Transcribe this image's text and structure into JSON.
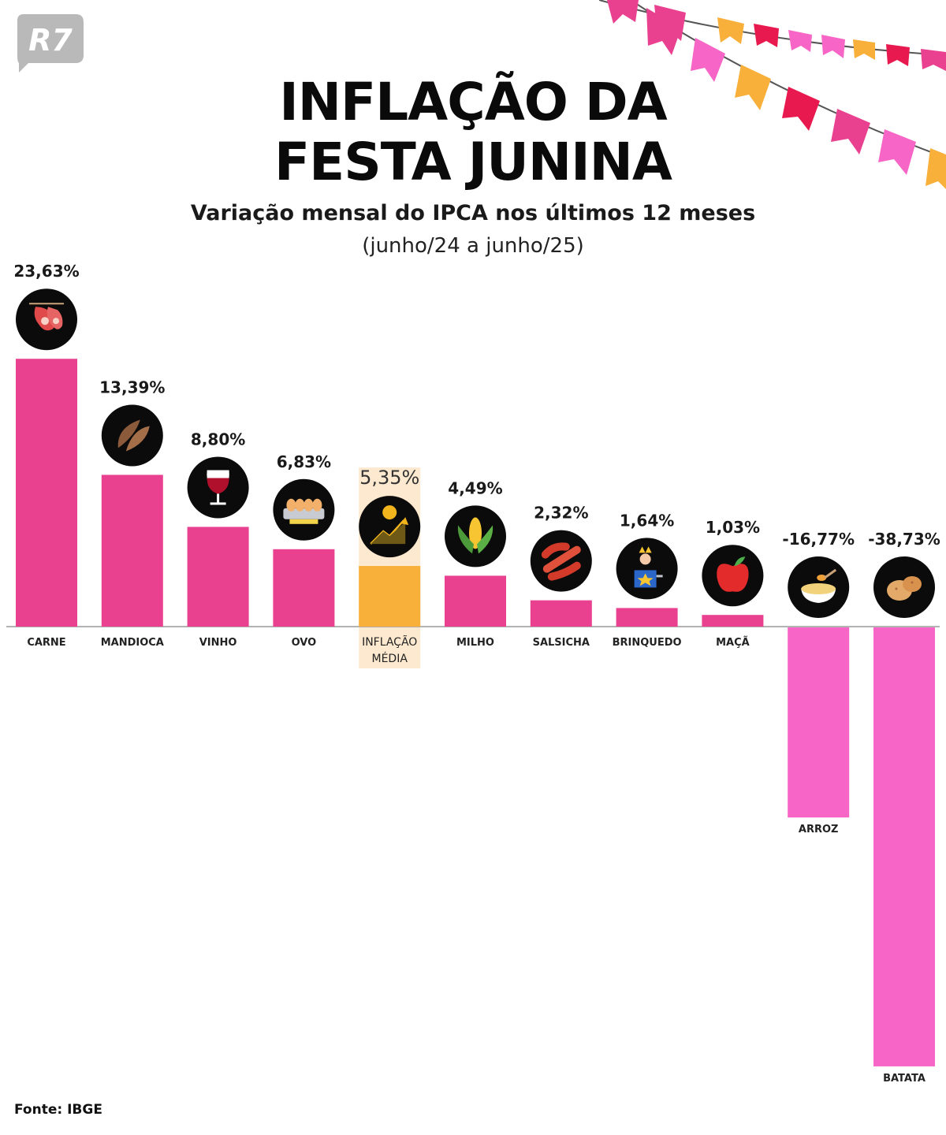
{
  "brand": {
    "logo_text": "R7",
    "logo_color": "#b9b9b9"
  },
  "header": {
    "title_line1": "INFLAÇÃO DA",
    "title_line2": "FESTA JUNINA",
    "subtitle": "Variação mensal do IPCA nos últimos 12 meses",
    "period": "(junho/24 a junho/25)"
  },
  "footer": {
    "source": "Fonte: IBGE"
  },
  "colors": {
    "bar_positive": "#e9418f",
    "bar_negative": "#f766c6",
    "bar_average": "#f9b03a",
    "average_highlight": "#fde9cf",
    "icon_background": "#0b0b0b",
    "baseline": "#9a9a9a"
  },
  "chart_data": {
    "type": "bar",
    "title": "INFLAÇÃO DA FESTA JUNINA",
    "subtitle": "Variação mensal do IPCA nos últimos 12 meses",
    "xlabel": "",
    "ylabel": "",
    "grid": false,
    "legend": "none",
    "categories": [
      "CARNE",
      "MANDIOCA",
      "VINHO",
      "OVO",
      "INFLAÇÃO MÉDIA",
      "MILHO",
      "SALSICHA",
      "BRINQUEDO",
      "MAÇÃ",
      "ARROZ",
      "BATATA"
    ],
    "values": [
      23.63,
      13.39,
      8.8,
      6.83,
      5.35,
      4.49,
      2.32,
      1.64,
      1.03,
      -16.77,
      -38.73
    ],
    "value_labels": [
      "23,63%",
      "13,39%",
      "8,80%",
      "6,83%",
      "5,35%",
      "4,49%",
      "2,32%",
      "1,64%",
      "1,03%",
      "-16,77%",
      "-38,73%"
    ],
    "highlight_category": "INFLAÇÃO MÉDIA",
    "icons": [
      "meat-icon",
      "cassava-icon",
      "wine-glass-icon",
      "eggs-icon",
      "growth-chart-icon",
      "corn-icon",
      "sausage-icon",
      "jack-in-the-box-icon",
      "apple-icon",
      "rice-icon",
      "potato-icon"
    ],
    "ylim": [
      -38.73,
      23.63
    ]
  }
}
